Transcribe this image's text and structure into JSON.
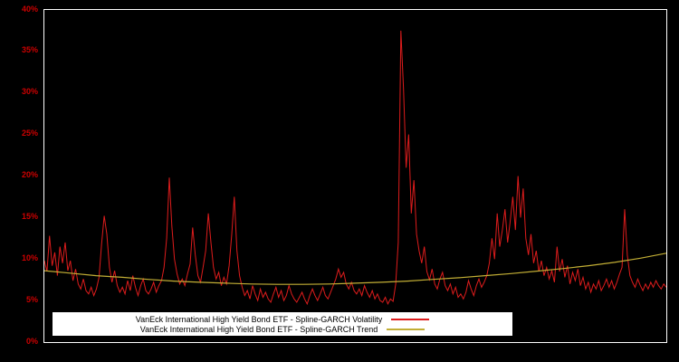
{
  "colors": {
    "background": "#000000",
    "frame": "#ffffff",
    "volatility": "#dd1c1c",
    "trend": "#c2ae35",
    "tick_label": "#cc0000",
    "legend_bg": "#ffffff",
    "legend_text": "#000000"
  },
  "y_axis": {
    "ticks": [
      "0%",
      "5%",
      "10%",
      "15%",
      "20%",
      "25%",
      "30%",
      "35%",
      "40%"
    ],
    "min": 0,
    "max": 40
  },
  "legend": {
    "entries": [
      {
        "label": "VanEck International High Yield Bond ETF - Spline-GARCH Volatility",
        "color_key": "volatility"
      },
      {
        "label": "VanEck International High Yield Bond ETF - Spline-GARCH Trend",
        "color_key": "trend"
      }
    ]
  },
  "chart_data": {
    "type": "line",
    "title": "",
    "xlabel": "",
    "ylabel": "",
    "ylim": [
      0,
      40
    ],
    "y_unit": "%",
    "grid": false,
    "legend_position": "bottom-center",
    "series": [
      {
        "name": "VanEck International High Yield Bond ETF - Spline-GARCH Volatility",
        "color_key": "volatility",
        "values": [
          9.8,
          8.5,
          12.8,
          9.2,
          10.8,
          8.0,
          11.5,
          9.5,
          12.0,
          8.6,
          9.8,
          7.4,
          8.8,
          7.0,
          6.4,
          7.6,
          6.2,
          5.8,
          6.6,
          5.6,
          6.4,
          7.8,
          11.8,
          15.2,
          13.0,
          9.0,
          7.2,
          8.6,
          6.8,
          6.0,
          6.6,
          5.8,
          7.4,
          6.2,
          8.0,
          6.6,
          5.6,
          6.8,
          7.6,
          6.2,
          5.8,
          6.4,
          7.2,
          6.0,
          6.8,
          7.4,
          9.0,
          12.5,
          19.8,
          14.0,
          10.0,
          8.2,
          7.0,
          7.6,
          6.8,
          8.2,
          9.4,
          13.8,
          10.5,
          8.0,
          7.2,
          9.0,
          11.0,
          15.5,
          12.0,
          9.0,
          7.6,
          8.4,
          6.8,
          7.8,
          7.0,
          9.2,
          13.0,
          17.5,
          11.0,
          8.0,
          6.6,
          5.6,
          6.2,
          5.2,
          6.8,
          5.8,
          5.0,
          6.4,
          5.4,
          6.0,
          5.2,
          4.8,
          5.8,
          6.6,
          5.4,
          6.2,
          5.0,
          5.6,
          6.8,
          5.8,
          5.2,
          4.8,
          5.4,
          6.0,
          5.2,
          4.6,
          5.6,
          6.4,
          5.6,
          5.0,
          5.8,
          6.6,
          5.6,
          5.2,
          6.0,
          6.8,
          7.6,
          8.8,
          7.8,
          8.4,
          7.0,
          6.4,
          7.2,
          6.2,
          5.8,
          6.4,
          5.6,
          6.8,
          6.0,
          5.4,
          6.2,
          5.2,
          5.8,
          5.0,
          4.8,
          5.4,
          4.6,
          5.2,
          4.9,
          7.0,
          12.0,
          37.5,
          30.5,
          21.0,
          25.0,
          15.5,
          19.5,
          13.0,
          11.0,
          9.5,
          11.5,
          8.5,
          7.5,
          8.8,
          7.0,
          6.4,
          7.6,
          8.4,
          6.8,
          6.2,
          7.0,
          5.8,
          6.6,
          5.4,
          5.8,
          5.2,
          6.0,
          7.4,
          6.4,
          5.6,
          6.8,
          7.6,
          6.6,
          7.2,
          8.0,
          9.5,
          12.5,
          10.0,
          15.5,
          11.5,
          13.5,
          16.0,
          12.0,
          14.5,
          17.5,
          13.5,
          20.0,
          15.0,
          18.5,
          12.5,
          10.5,
          13.0,
          9.5,
          11.0,
          8.5,
          9.8,
          8.0,
          9.0,
          7.6,
          8.6,
          7.2,
          11.5,
          8.5,
          10.0,
          7.8,
          9.2,
          7.0,
          8.4,
          7.4,
          8.8,
          6.8,
          7.8,
          6.4,
          7.2,
          6.0,
          7.0,
          6.4,
          7.4,
          6.2,
          6.8,
          7.6,
          6.6,
          7.4,
          6.4,
          7.2,
          8.2,
          9.0,
          16.0,
          10.5,
          8.0,
          7.2,
          6.6,
          7.6,
          6.8,
          6.2,
          7.0,
          6.4,
          7.2,
          6.6,
          7.4,
          6.8,
          6.4,
          7.0,
          6.6
        ]
      },
      {
        "name": "VanEck International High Yield Bond ETF - Spline-GARCH Trend",
        "color_key": "trend",
        "values": [
          8.6,
          8.3,
          8.0,
          7.8,
          7.55,
          7.35,
          7.2,
          7.1,
          7.0,
          6.95,
          6.95,
          7.0,
          7.1,
          7.2,
          7.35,
          7.55,
          7.75,
          8.0,
          8.25,
          8.55,
          8.85,
          9.2,
          9.6,
          10.1,
          10.7
        ]
      }
    ]
  }
}
